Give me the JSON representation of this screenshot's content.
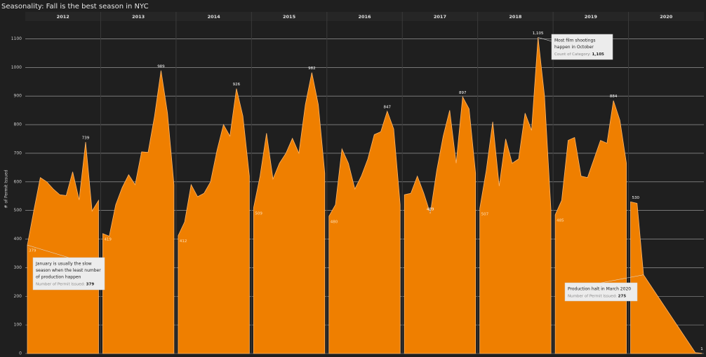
{
  "chart_data": {
    "type": "area",
    "title": "Seasonality: Fall is the best season in NYC",
    "y_label": "# of Permit Issued",
    "ylim": [
      0,
      1150
    ],
    "yticks": [
      0,
      100,
      200,
      300,
      400,
      500,
      600,
      700,
      800,
      900,
      1000,
      1100
    ],
    "xlim": [
      1,
      12
    ],
    "grid": true,
    "color": "#ef7f00",
    "panels": [
      {
        "year": "2012",
        "x": [
          1,
          2,
          3,
          4,
          5,
          6,
          7,
          8,
          9,
          10,
          11,
          12
        ],
        "values": [
          379,
          500,
          615,
          600,
          575,
          555,
          552,
          635,
          537,
          739,
          498,
          535
        ],
        "value_labels": [
          "379",
          null,
          null,
          null,
          null,
          null,
          null,
          null,
          null,
          "739",
          null,
          null
        ]
      },
      {
        "year": "2013",
        "x": [
          1,
          2,
          3,
          4,
          5,
          6,
          7,
          8,
          9,
          10,
          11,
          12
        ],
        "values": [
          419,
          410,
          520,
          580,
          625,
          590,
          705,
          703,
          830,
          989,
          840,
          590
        ],
        "value_labels": [
          "419",
          null,
          null,
          null,
          null,
          null,
          null,
          null,
          null,
          "989",
          null,
          null
        ]
      },
      {
        "year": "2014",
        "x": [
          1,
          2,
          3,
          4,
          5,
          6,
          7,
          8,
          9,
          10,
          11,
          12
        ],
        "values": [
          412,
          460,
          590,
          548,
          560,
          600,
          710,
          800,
          760,
          926,
          830,
          620
        ],
        "value_labels": [
          "412",
          null,
          null,
          null,
          null,
          null,
          null,
          null,
          null,
          "926",
          null,
          null
        ]
      },
      {
        "year": "2015",
        "x": [
          1,
          2,
          3,
          4,
          5,
          6,
          7,
          8,
          9,
          10,
          11,
          12
        ],
        "values": [
          509,
          620,
          770,
          610,
          665,
          700,
          752,
          700,
          870,
          982,
          870,
          630
        ],
        "value_labels": [
          "509",
          null,
          null,
          null,
          null,
          null,
          null,
          null,
          null,
          "982",
          null,
          null
        ]
      },
      {
        "year": "2016",
        "x": [
          1,
          2,
          3,
          4,
          5,
          6,
          7,
          8,
          9,
          10,
          11,
          12
        ],
        "values": [
          480,
          520,
          715,
          665,
          575,
          620,
          680,
          765,
          775,
          847,
          785,
          520
        ],
        "value_labels": [
          "480",
          null,
          null,
          null,
          null,
          null,
          null,
          null,
          null,
          "847",
          null,
          null
        ]
      },
      {
        "year": "2017",
        "x": [
          1,
          2,
          3,
          4,
          5,
          6,
          7,
          8,
          9,
          10,
          11,
          12
        ],
        "values": [
          555,
          560,
          620,
          560,
          489,
          640,
          760,
          850,
          665,
          897,
          855,
          630
        ],
        "value_labels": [
          null,
          null,
          null,
          null,
          "489",
          null,
          null,
          null,
          null,
          "897",
          null,
          null
        ]
      },
      {
        "year": "2018",
        "x": [
          1,
          2,
          3,
          4,
          5,
          6,
          7,
          8,
          9,
          10,
          11,
          12
        ],
        "values": [
          507,
          640,
          810,
          585,
          750,
          665,
          680,
          840,
          780,
          1105,
          900,
          500
        ],
        "value_labels": [
          "507",
          null,
          null,
          null,
          null,
          null,
          null,
          null,
          null,
          "1,105",
          null,
          null
        ]
      },
      {
        "year": "2019",
        "x": [
          1,
          2,
          3,
          4,
          5,
          6,
          7,
          8,
          9,
          10,
          11,
          12
        ],
        "values": [
          485,
          535,
          745,
          755,
          620,
          615,
          680,
          745,
          735,
          884,
          815,
          665
        ],
        "value_labels": [
          "485",
          null,
          null,
          null,
          null,
          null,
          null,
          null,
          null,
          "884",
          null,
          null
        ]
      },
      {
        "year": "2020",
        "x": [
          1,
          2,
          3,
          11,
          12
        ],
        "values": [
          530,
          525,
          275,
          3,
          1
        ],
        "value_labels": [
          "530",
          null,
          null,
          null,
          "1"
        ]
      }
    ],
    "annotations": [
      {
        "lines": [
          "January is usually the slow",
          "season when the least number",
          "of production happen"
        ],
        "detail_label": "Number of Permit Issued:",
        "detail_value": "379"
      },
      {
        "lines": [
          "Most film shootings",
          "happen in October"
        ],
        "detail_label": "Count of Category:",
        "detail_value": "1,105"
      },
      {
        "lines": [
          "Production halt in March 2020"
        ],
        "detail_label": "Number of Permit Issued:",
        "detail_value": "275"
      }
    ]
  }
}
